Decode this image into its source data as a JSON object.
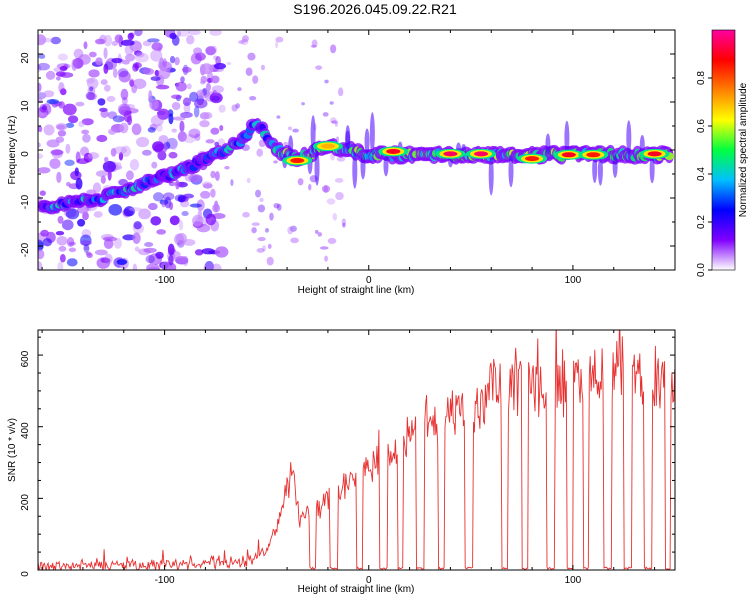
{
  "figure": {
    "title": "S196.2026.045.09.22.R21"
  },
  "chart_data": [
    {
      "type": "heatmap",
      "title": "S196.2026.045.09.22.R21",
      "xlabel": "Height of straight line (km)",
      "ylabel": "Frequency (Hz)",
      "xlim": [
        -162,
        150
      ],
      "ylim": [
        -25,
        25
      ],
      "xticks": [
        -100,
        0,
        100
      ],
      "yticks": [
        -20,
        -10,
        0,
        10,
        20
      ],
      "colorbar": {
        "label": "Normalized spectral amplitude",
        "range": [
          0,
          1
        ],
        "ticks": [
          0.0,
          0.2,
          0.4,
          0.6,
          0.8
        ],
        "tick_labels": [
          "0.0",
          "0.2",
          "0.4",
          "0.6",
          "0.8"
        ],
        "colors": [
          "#ffffff",
          "#8000ff",
          "#0000ff",
          "#00c0ff",
          "#00ff40",
          "#ffff00",
          "#ff8000",
          "#ff0000",
          "#ff00a0"
        ]
      },
      "ridge": [
        {
          "x": -160,
          "freq": -12.0
        },
        {
          "x": -130,
          "freq": -10.0
        },
        {
          "x": -110,
          "freq": -7.0
        },
        {
          "x": -90,
          "freq": -4.0
        },
        {
          "x": -75,
          "freq": -1.0
        },
        {
          "x": -62,
          "freq": 2.0
        },
        {
          "x": -55,
          "freq": 6.0
        },
        {
          "x": -45,
          "freq": 0.0
        },
        {
          "x": -35,
          "freq": -2.0
        },
        {
          "x": -20,
          "freq": 1.0
        },
        {
          "x": 0,
          "freq": -1.0
        },
        {
          "x": 50,
          "freq": -1.0
        },
        {
          "x": 100,
          "freq": -1.0
        },
        {
          "x": 148,
          "freq": -1.0
        }
      ],
      "peaks": [
        {
          "x": -35,
          "freq": -2.2,
          "amplitude": 0.85
        },
        {
          "x": -20,
          "freq": 0.8,
          "amplitude": 0.7
        },
        {
          "x": 12,
          "freq": -0.3,
          "amplitude": 0.9
        },
        {
          "x": 40,
          "freq": -0.8,
          "amplitude": 0.95
        },
        {
          "x": 55,
          "freq": -0.8,
          "amplitude": 0.95
        },
        {
          "x": 80,
          "freq": -1.8,
          "amplitude": 0.85
        },
        {
          "x": 98,
          "freq": -1.0,
          "amplitude": 0.9
        },
        {
          "x": 110,
          "freq": -1.0,
          "amplitude": 0.85
        },
        {
          "x": 140,
          "freq": -0.8,
          "amplitude": 0.9
        }
      ],
      "series_color": "#ff0000"
    },
    {
      "type": "line",
      "xlabel": "Height of straight line (km)",
      "ylabel": "SNR (10 * v/v)",
      "xlim": [
        -162,
        150
      ],
      "ylim": [
        0,
        670
      ],
      "xticks": [
        -100,
        0,
        100
      ],
      "yticks": [
        0,
        200,
        400,
        600
      ],
      "color": "#e83030",
      "x": [
        -162,
        -150,
        -130,
        -110,
        -90,
        -70,
        -60,
        -50,
        -45,
        -40,
        -37,
        -34,
        -30,
        -25,
        -20,
        -15,
        -10,
        -5,
        0,
        5,
        10,
        15,
        20,
        25,
        30,
        35,
        40,
        45,
        50,
        55,
        60,
        70,
        80,
        90,
        100,
        110,
        120,
        130,
        140,
        150
      ],
      "values": [
        15,
        14,
        16,
        15,
        18,
        20,
        22,
        60,
        120,
        230,
        320,
        140,
        160,
        180,
        200,
        230,
        260,
        280,
        300,
        310,
        330,
        360,
        380,
        410,
        420,
        440,
        445,
        450,
        455,
        460,
        520,
        540,
        530,
        535,
        550,
        580,
        560,
        550,
        545,
        520
      ],
      "dropouts": [
        {
          "from": -29,
          "to": -26
        },
        {
          "from": -19,
          "to": -15
        },
        {
          "from": -6,
          "to": -3
        },
        {
          "from": 5,
          "to": 9
        },
        {
          "from": 14,
          "to": 17
        },
        {
          "from": 23,
          "to": 27
        },
        {
          "from": 34,
          "to": 37
        },
        {
          "from": 47,
          "to": 51
        },
        {
          "from": 65,
          "to": 68
        },
        {
          "from": 75,
          "to": 78
        },
        {
          "from": 87,
          "to": 91
        },
        {
          "from": 97,
          "to": 100
        },
        {
          "from": 105,
          "to": 108
        },
        {
          "from": 115,
          "to": 119
        },
        {
          "from": 125,
          "to": 129
        },
        {
          "from": 135,
          "to": 139
        },
        {
          "from": 145,
          "to": 148
        }
      ]
    }
  ]
}
